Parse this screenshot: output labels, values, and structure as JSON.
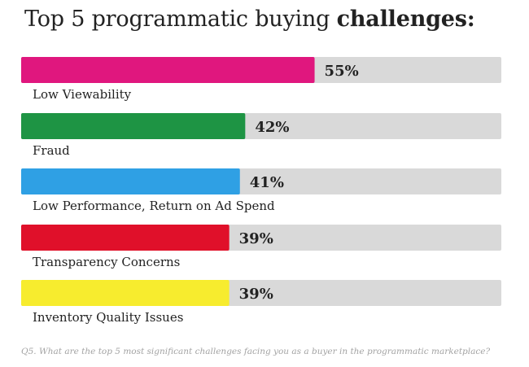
{
  "title": {
    "prefix": "Top 5 programmatic buying ",
    "emphasis": "challenges:"
  },
  "footnote": "Q5. What are the top 5 most significant challenges facing you as a buyer in the programmatic marketplace?",
  "chart_data": {
    "type": "bar",
    "orientation": "horizontal",
    "categories": [
      "Low Viewability",
      "Fraud",
      "Low Performance, Return on Ad Spend",
      "Transparency Concerns",
      "Inventory Quality Issues"
    ],
    "values": [
      55,
      42,
      41,
      39,
      39
    ],
    "value_labels": [
      "55%",
      "42%",
      "41%",
      "39%",
      "39%"
    ],
    "colors": [
      "#e0177e",
      "#1e9444",
      "#2fa0e4",
      "#e0102a",
      "#f7ec2e"
    ],
    "track_color": "#d9d9d9",
    "xlim": [
      0,
      90
    ],
    "grid": false,
    "legend": "none"
  }
}
